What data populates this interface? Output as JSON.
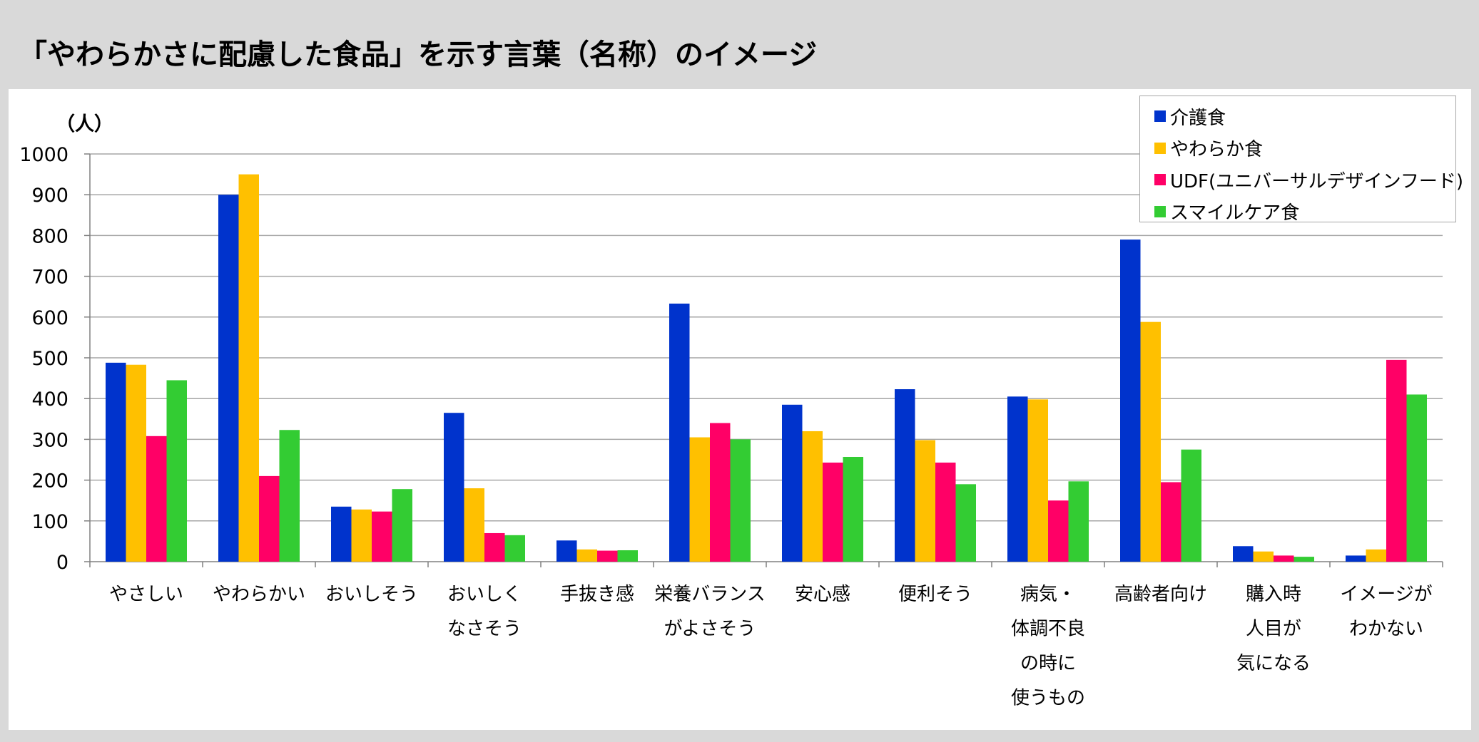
{
  "title": "「やわらかさに配慮した食品」を示す言葉（名称）のイメージ",
  "chart_data": {
    "type": "bar",
    "ylabel": "（人）",
    "ylim": [
      0,
      1000
    ],
    "yticks": [
      0,
      100,
      200,
      300,
      400,
      500,
      600,
      700,
      800,
      900,
      1000
    ],
    "grid": true,
    "legend_position": "top-right",
    "categories": [
      [
        "やさしい"
      ],
      [
        "やわらかい"
      ],
      [
        "おいしそう"
      ],
      [
        "おいしく",
        "なさそう"
      ],
      [
        "手抜き感"
      ],
      [
        "栄養バランス",
        "がよさそう"
      ],
      [
        "安心感"
      ],
      [
        "便利そう"
      ],
      [
        "病気・",
        "体調不良",
        "の時に",
        "使うもの"
      ],
      [
        "高齢者向け"
      ],
      [
        "購入時",
        "人目が",
        "気になる"
      ],
      [
        "イメージが",
        "わかない"
      ]
    ],
    "series": [
      {
        "name": "介護食",
        "color": "#0033cc",
        "values": [
          488,
          900,
          135,
          365,
          52,
          633,
          385,
          423,
          405,
          790,
          38,
          15
        ]
      },
      {
        "name": "やわらか食",
        "color": "#ffc000",
        "values": [
          483,
          950,
          128,
          180,
          30,
          305,
          320,
          298,
          398,
          588,
          25,
          30
        ]
      },
      {
        "name": "UDF(ユニバーサルデザインフード)",
        "color": "#ff0066",
        "values": [
          308,
          210,
          123,
          70,
          27,
          340,
          243,
          243,
          150,
          195,
          15,
          495
        ]
      },
      {
        "name": "スマイルケア食",
        "color": "#33cc33",
        "values": [
          445,
          323,
          178,
          65,
          28,
          300,
          257,
          190,
          197,
          275,
          12,
          410
        ]
      }
    ]
  }
}
